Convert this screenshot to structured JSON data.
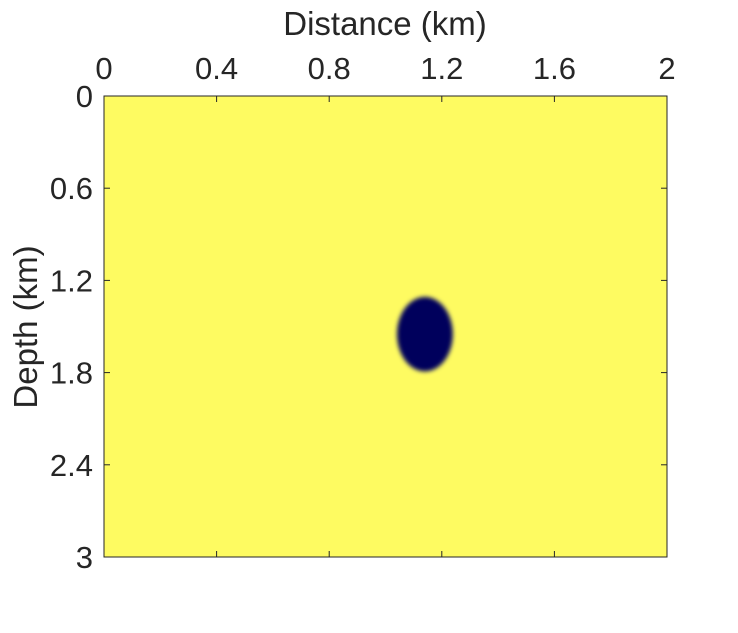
{
  "chart_data": {
    "type": "heatmap",
    "title": "",
    "xlabel": "Distance (km)",
    "ylabel": "Depth (km)",
    "xlim": [
      0,
      2
    ],
    "ylim": [
      0,
      3
    ],
    "x_axis_position": "top",
    "y_axis_reversed": true,
    "xticks": [
      0,
      0.4,
      0.8,
      1.2,
      1.6,
      2
    ],
    "xtick_labels": [
      "0",
      "0.4",
      "0.8",
      "1.2",
      "1.6",
      "2"
    ],
    "yticks": [
      0,
      0.6,
      1.2,
      1.8,
      2.4,
      3
    ],
    "ytick_labels": [
      "0",
      "0.6",
      "1.2",
      "1.8",
      "2.4",
      "3"
    ],
    "grid": false,
    "colorbar": false,
    "background_value_color": "#FEFB61",
    "anomaly_color": "#01045C",
    "anomaly": {
      "shape": "ellipse",
      "center_x_km": 1.14,
      "center_z_km": 1.55,
      "radius_x_km": 0.1,
      "radius_z_km": 0.24
    }
  }
}
